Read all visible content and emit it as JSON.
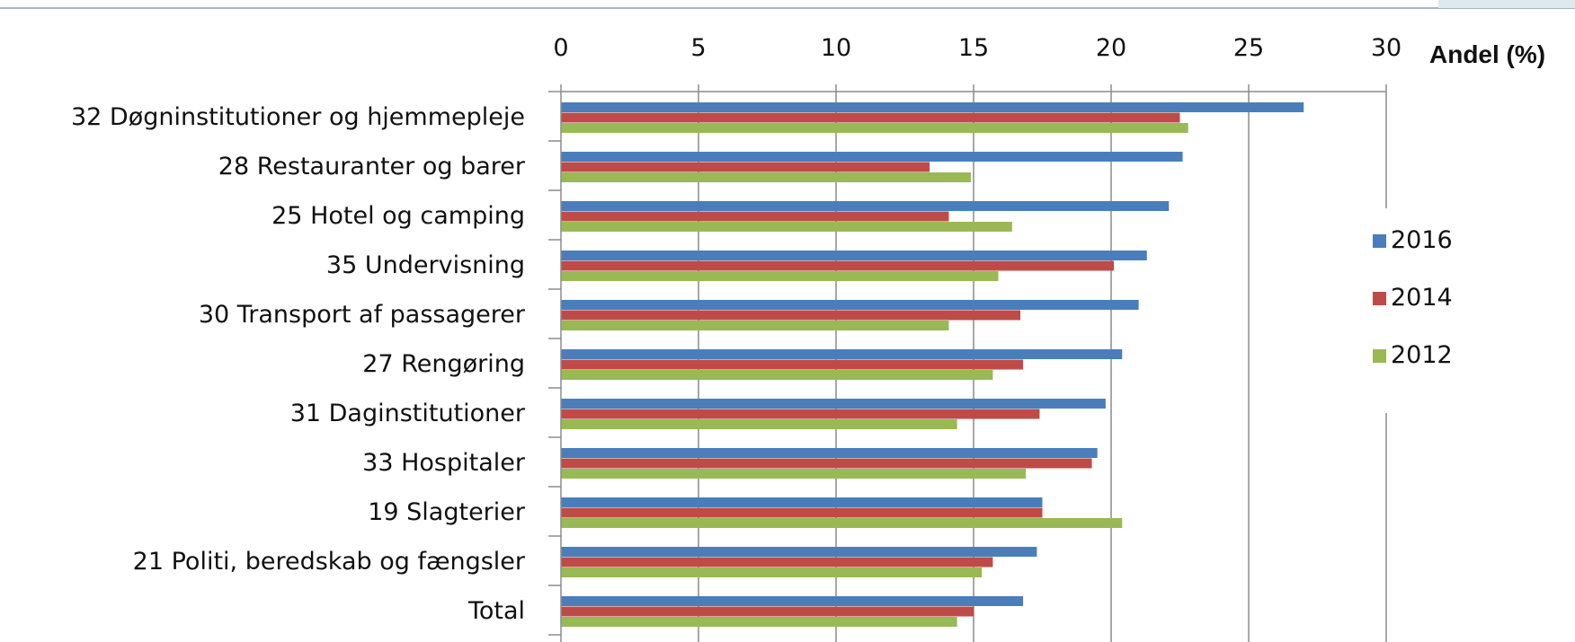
{
  "chart_data": {
    "type": "bar",
    "orientation": "horizontal",
    "title": "",
    "xlabel": "Andel (%)",
    "xlim": [
      0,
      30
    ],
    "x_ticks": [
      0,
      5,
      10,
      15,
      20,
      25,
      30
    ],
    "grid": "vertical",
    "legend_position": "right",
    "categories": [
      "32 Døgninstitutioner og hjemmepleje",
      "28 Restauranter og barer",
      "25 Hotel og camping",
      "35 Undervisning",
      "30 Transport af passagerer",
      "27 Rengøring",
      "31 Daginstitutioner",
      "33 Hospitaler",
      "19 Slagterier",
      "21 Politi, beredskab og fængsler",
      "Total"
    ],
    "series": [
      {
        "name": "2016",
        "color": "#4a7ebb",
        "values": [
          27.0,
          22.6,
          22.1,
          21.3,
          21.0,
          20.4,
          19.8,
          19.5,
          17.5,
          17.3,
          16.8
        ]
      },
      {
        "name": "2014",
        "color": "#be4b48",
        "values": [
          22.5,
          13.4,
          14.1,
          20.1,
          16.7,
          16.8,
          17.4,
          19.3,
          17.5,
          15.7,
          15.0
        ]
      },
      {
        "name": "2012",
        "color": "#98b954",
        "values": [
          22.8,
          14.9,
          16.4,
          15.9,
          14.1,
          15.7,
          14.4,
          16.9,
          20.4,
          15.3,
          14.4
        ]
      }
    ]
  }
}
